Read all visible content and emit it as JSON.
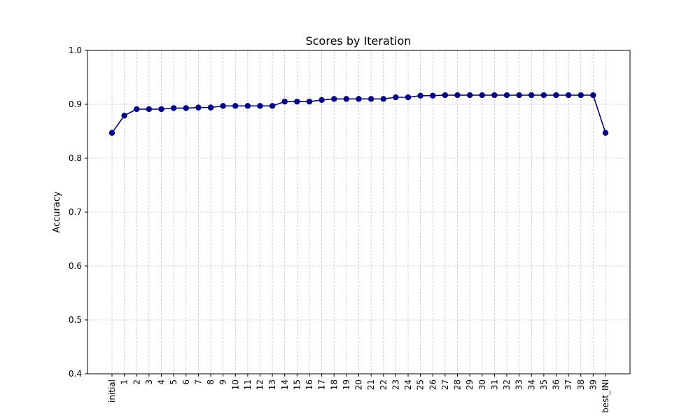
{
  "chart_data": {
    "type": "line",
    "title": "Scores by Iteration",
    "xlabel": "",
    "ylabel": "Accuracy",
    "ylim": [
      0.4,
      1.0
    ],
    "yticks": [
      "0.4",
      "0.5",
      "0.6",
      "0.7",
      "0.8",
      "0.9",
      "1.0"
    ],
    "grid": true,
    "categories": [
      "initial",
      "1",
      "2",
      "3",
      "4",
      "5",
      "6",
      "7",
      "8",
      "9",
      "10",
      "11",
      "12",
      "13",
      "14",
      "15",
      "16",
      "17",
      "18",
      "19",
      "20",
      "21",
      "22",
      "23",
      "24",
      "25",
      "26",
      "27",
      "28",
      "29",
      "30",
      "31",
      "32",
      "33",
      "34",
      "35",
      "36",
      "37",
      "38",
      "39",
      "best_INI"
    ],
    "values": [
      0.847,
      0.879,
      0.891,
      0.891,
      0.891,
      0.893,
      0.893,
      0.894,
      0.894,
      0.897,
      0.897,
      0.897,
      0.897,
      0.897,
      0.905,
      0.905,
      0.905,
      0.908,
      0.91,
      0.91,
      0.91,
      0.91,
      0.91,
      0.913,
      0.913,
      0.916,
      0.916,
      0.917,
      0.917,
      0.917,
      0.917,
      0.917,
      0.917,
      0.917,
      0.917,
      0.917,
      0.917,
      0.917,
      0.917,
      0.917,
      0.847
    ],
    "line_color": "#00008b",
    "grid_color": "#b0b0b0"
  }
}
